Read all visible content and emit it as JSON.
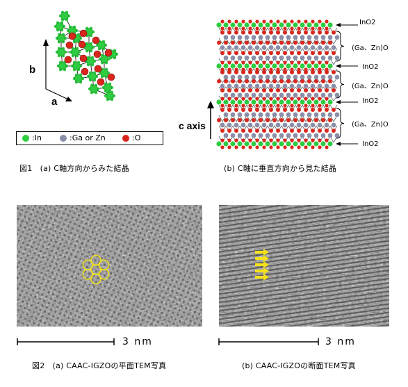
{
  "figure1": {
    "axis_b": "b",
    "axis_a": "a",
    "axis_c": "c axis",
    "legend": [
      {
        "label": ":In",
        "color": "#2ecc40"
      },
      {
        "label": ":Ga or Zn",
        "color": "#8a8fa8"
      },
      {
        "label": ":O",
        "color": "#d9261c"
      }
    ],
    "layers": [
      "InO2",
      "(Ga、Zn)O",
      "InO2",
      "(Ga、Zn)O",
      "InO2",
      "(Ga、Zn)O",
      "InO2"
    ],
    "caption_a": "図1　(a) C軸方向からみた結晶",
    "caption_b": "(b) C軸に垂直方向から見た結晶"
  },
  "figure2": {
    "scale_a": "3 nm",
    "scale_b": "3 nm",
    "caption_a": "図2　(a) CAAC-IGZOの平面TEM写真",
    "caption_b": "(b) CAAC-IGZOの断面TEM写真"
  }
}
